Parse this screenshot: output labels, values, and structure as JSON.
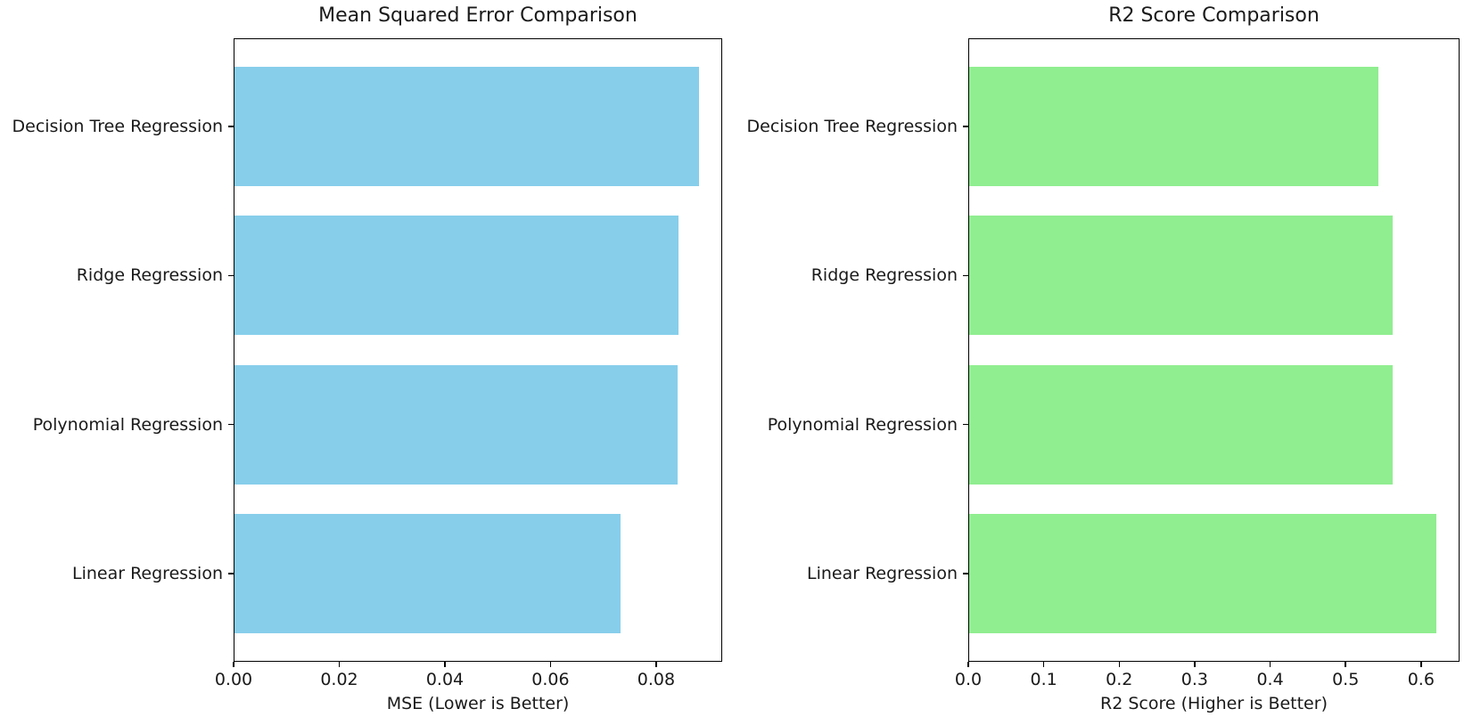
{
  "figure": {
    "background": "#ffffff",
    "text_color": "#1a1a1a",
    "spine_color": "#000000"
  },
  "chart_data": [
    {
      "type": "bar",
      "orientation": "horizontal",
      "title": "Mean Squared Error Comparison",
      "xlabel": "MSE (Lower is Better)",
      "category_order": "top-to-bottom",
      "categories": [
        "Decision Tree Regression",
        "Ridge Regression",
        "Polynomial Regression",
        "Linear Regression"
      ],
      "values": [
        0.0881,
        0.0842,
        0.084,
        0.0733
      ],
      "xlim": [
        0,
        0.0925
      ],
      "xticks": [
        0,
        0.02,
        0.04,
        0.06,
        0.08
      ],
      "xtick_labels": [
        "0.00",
        "0.02",
        "0.04",
        "0.06",
        "0.08"
      ],
      "bar_color": "#87CEEB",
      "grid": false,
      "legend": null
    },
    {
      "type": "bar",
      "orientation": "horizontal",
      "title": "R2 Score Comparison",
      "xlabel": "R2 Score (Higher is Better)",
      "category_order": "top-to-bottom",
      "categories": [
        "Decision Tree Regression",
        "Ridge Regression",
        "Polynomial Regression",
        "Linear Regression"
      ],
      "values": [
        0.544,
        0.562,
        0.562,
        0.62
      ],
      "xlim": [
        0,
        0.651
      ],
      "xticks": [
        0,
        0.1,
        0.2,
        0.3,
        0.4,
        0.5,
        0.6
      ],
      "xtick_labels": [
        "0.0",
        "0.1",
        "0.2",
        "0.3",
        "0.4",
        "0.5",
        "0.6"
      ],
      "bar_color": "#90EE90",
      "grid": false,
      "legend": null
    }
  ]
}
